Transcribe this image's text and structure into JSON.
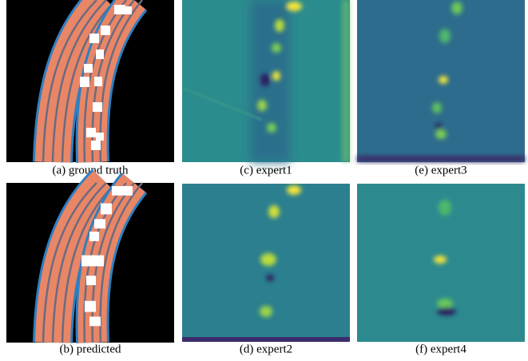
{
  "figure": {
    "panels": [
      {
        "caption": "(a) ground truth"
      },
      {
        "caption": "(c) expert1"
      },
      {
        "caption": "(e) expert3"
      },
      {
        "caption": "(b) predicted"
      },
      {
        "caption": "(d) expert2"
      },
      {
        "caption": "(f) expert4"
      }
    ]
  }
}
